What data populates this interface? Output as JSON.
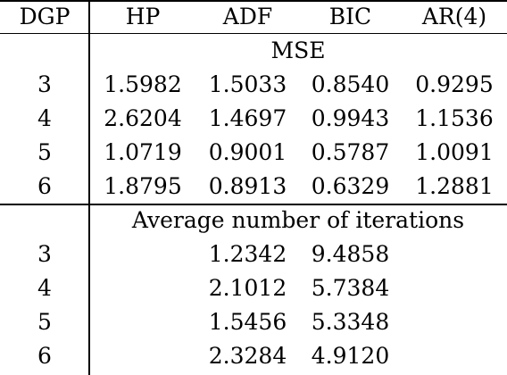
{
  "header": {
    "dgp": "DGP",
    "hp": "HP",
    "adf": "ADF",
    "bic": "BIC",
    "ar4": "AR(4)"
  },
  "section_mse": {
    "title": "MSE",
    "rows": [
      {
        "dgp": "3",
        "hp": "1.5982",
        "adf": "1.5033",
        "bic": "0.8540",
        "ar4": "0.9295"
      },
      {
        "dgp": "4",
        "hp": "2.6204",
        "adf": "1.4697",
        "bic": "0.9943",
        "ar4": "1.1536"
      },
      {
        "dgp": "5",
        "hp": "1.0719",
        "adf": "0.9001",
        "bic": "0.5787",
        "ar4": "1.0091"
      },
      {
        "dgp": "6",
        "hp": "1.8795",
        "adf": "0.8913",
        "bic": "0.6329",
        "ar4": "1.2881"
      }
    ]
  },
  "section_iter": {
    "title": "Average number of iterations",
    "rows": [
      {
        "dgp": "3",
        "adf": "1.2342",
        "bic": "9.4858"
      },
      {
        "dgp": "4",
        "adf": "2.1012",
        "bic": "5.7384"
      },
      {
        "dgp": "5",
        "adf": "1.5456",
        "bic": "5.3348"
      },
      {
        "dgp": "6",
        "adf": "2.3284",
        "bic": "4.9120"
      }
    ]
  }
}
